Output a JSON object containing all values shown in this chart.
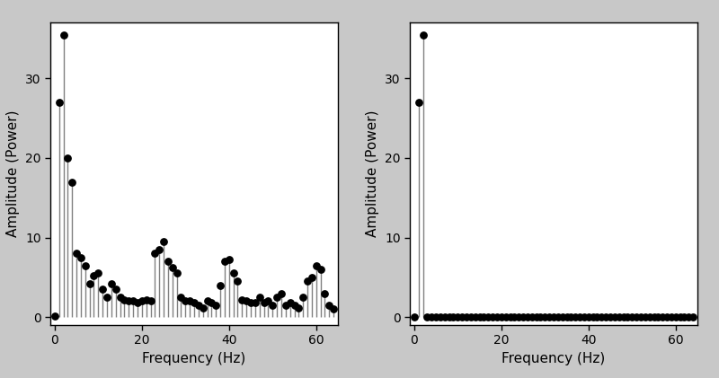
{
  "plot1_freqs": [
    0.0,
    1.0,
    2.0,
    3.0,
    4.0,
    5.0,
    6.0,
    7.0,
    8.0,
    9.0,
    10.0,
    11.0,
    12.0,
    13.0,
    14.0,
    15.0,
    16.0,
    17.0,
    18.0,
    19.0,
    20.0,
    21.0,
    22.0,
    23.0,
    24.0,
    25.0,
    26.0,
    27.0,
    28.0,
    29.0,
    30.0,
    31.0,
    32.0,
    33.0,
    34.0,
    35.0,
    36.0,
    37.0,
    38.0,
    39.0,
    40.0,
    41.0,
    42.0,
    43.0,
    44.0,
    45.0,
    46.0,
    47.0,
    48.0,
    49.0,
    50.0,
    51.0,
    52.0,
    53.0,
    54.0,
    55.0,
    56.0,
    57.0,
    58.0,
    59.0,
    60.0,
    61.0,
    62.0,
    63.0,
    64.0
  ],
  "plot1_amps": [
    0.1,
    27.0,
    35.5,
    20.0,
    17.0,
    8.0,
    7.5,
    6.5,
    4.2,
    5.2,
    5.5,
    3.5,
    2.5,
    4.2,
    3.5,
    2.5,
    2.2,
    2.0,
    2.0,
    1.8,
    2.0,
    2.2,
    2.0,
    8.0,
    8.5,
    9.5,
    7.0,
    6.2,
    5.5,
    2.5,
    2.0,
    2.0,
    1.8,
    1.5,
    1.2,
    2.0,
    1.8,
    1.5,
    4.0,
    7.0,
    7.2,
    5.5,
    4.5,
    2.2,
    2.0,
    1.8,
    1.8,
    2.5,
    1.8,
    2.0,
    1.5,
    2.5,
    3.0,
    1.5,
    1.8,
    1.5,
    1.2,
    2.5,
    4.5,
    5.0,
    6.5,
    6.0,
    3.0,
    1.5,
    1.0
  ],
  "plot2_freqs": [
    0.0,
    1.0,
    2.0,
    3.0,
    4.0,
    5.0,
    6.0,
    7.0,
    8.0,
    9.0,
    10.0,
    11.0,
    12.0,
    13.0,
    14.0,
    15.0,
    16.0,
    17.0,
    18.0,
    19.0,
    20.0,
    21.0,
    22.0,
    23.0,
    24.0,
    25.0,
    26.0,
    27.0,
    28.0,
    29.0,
    30.0,
    31.0,
    32.0,
    33.0,
    34.0,
    35.0,
    36.0,
    37.0,
    38.0,
    39.0,
    40.0,
    41.0,
    42.0,
    43.0,
    44.0,
    45.0,
    46.0,
    47.0,
    48.0,
    49.0,
    50.0,
    51.0,
    52.0,
    53.0,
    54.0,
    55.0,
    56.0,
    57.0,
    58.0,
    59.0,
    60.0,
    61.0,
    62.0,
    63.0,
    64.0
  ],
  "plot2_amps": [
    0.02,
    27.0,
    35.5,
    0.02,
    0.02,
    0.02,
    0.02,
    0.02,
    0.02,
    0.02,
    0.02,
    0.02,
    0.02,
    0.02,
    0.02,
    0.02,
    0.02,
    0.02,
    0.02,
    0.02,
    0.02,
    0.02,
    0.02,
    0.02,
    0.02,
    0.02,
    0.02,
    0.02,
    0.02,
    0.02,
    0.02,
    0.02,
    0.02,
    0.02,
    0.02,
    0.02,
    0.02,
    0.02,
    0.02,
    0.02,
    0.02,
    0.02,
    0.02,
    0.02,
    0.02,
    0.02,
    0.02,
    0.02,
    0.02,
    0.02,
    0.02,
    0.02,
    0.02,
    0.02,
    0.02,
    0.02,
    0.02,
    0.02,
    0.02,
    0.02,
    0.02,
    0.02,
    0.02,
    0.02,
    0.02
  ],
  "xlabel": "Frequency (Hz)",
  "ylabel": "Amplitude (Power)",
  "plot1_xlim": [
    0,
    64
  ],
  "plot2_xlim": [
    0,
    64
  ],
  "ylim": [
    0,
    36
  ],
  "xticks": [
    0,
    20,
    40,
    60
  ],
  "yticks": [
    0,
    10,
    20,
    30
  ],
  "line_color": "#808080",
  "dot_color": "#000000",
  "background_color": "#c8c8c8",
  "plot_background": "#ffffff",
  "dot_size": 28,
  "line_width": 1.0,
  "xlabel_fontsize": 11,
  "ylabel_fontsize": 11,
  "tick_fontsize": 10
}
